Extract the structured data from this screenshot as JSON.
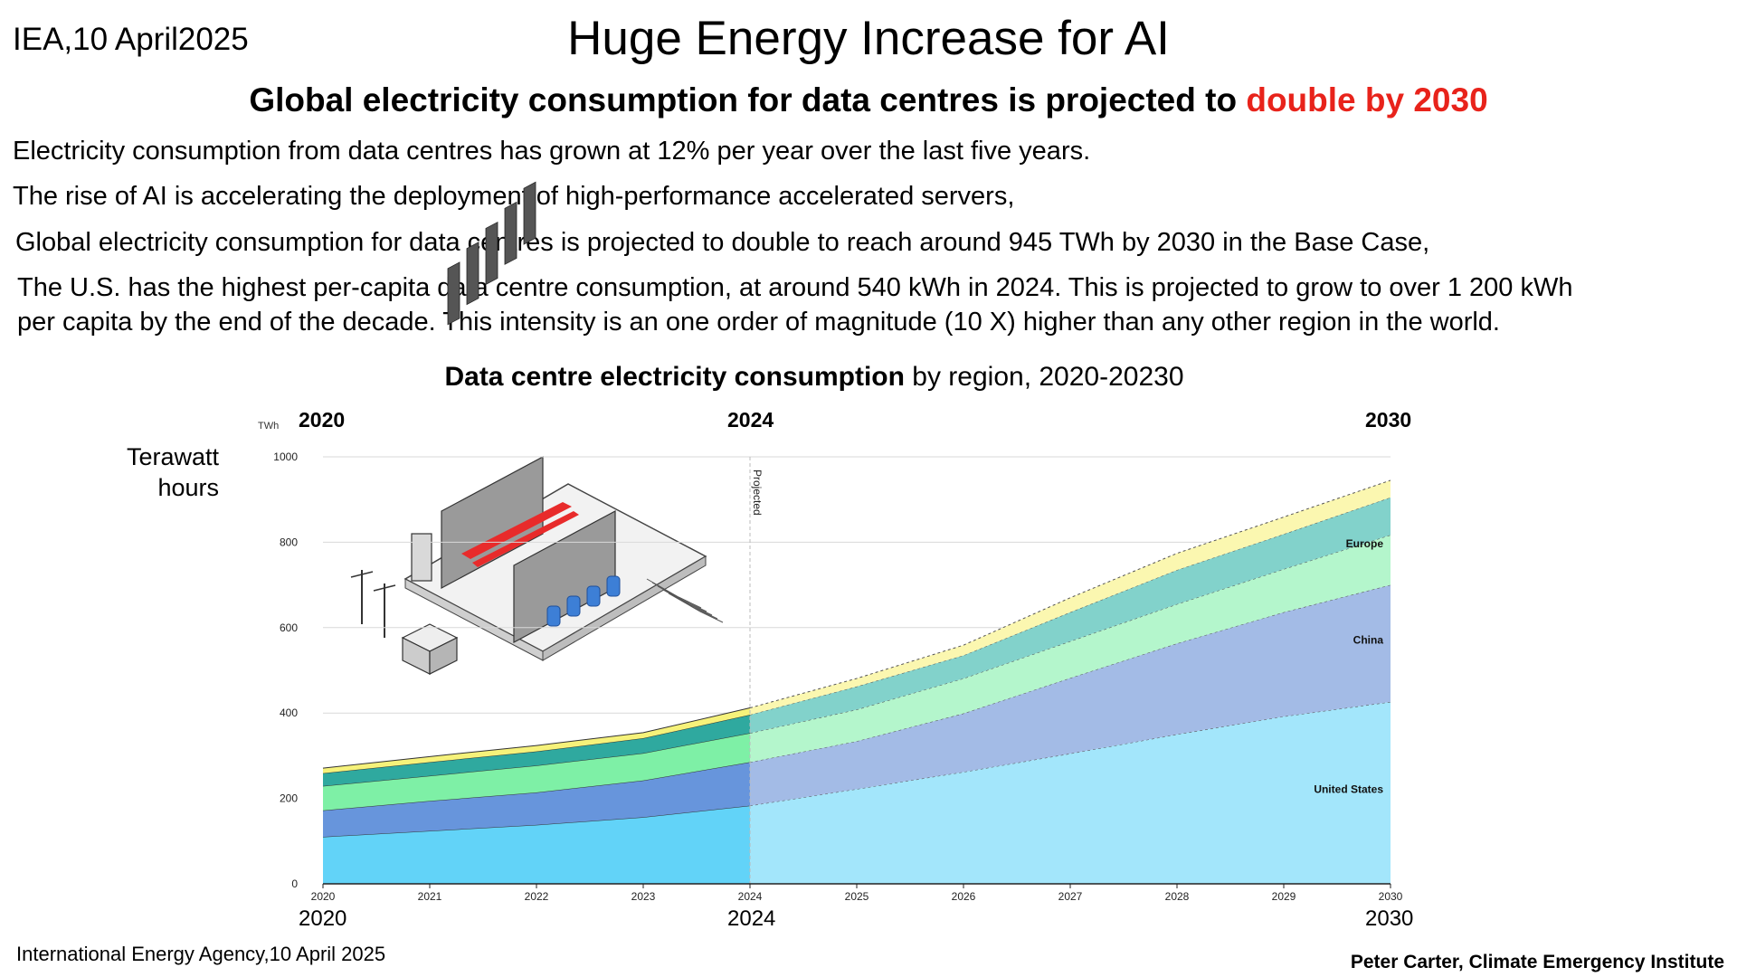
{
  "header": {
    "source": "IEA,10 April2025",
    "title": "Huge Energy Increase for AI",
    "subtitle_main": "Global electricity consumption for data centres is projected to ",
    "subtitle_highlight": "double by 2030",
    "highlight_color": "#e8231b"
  },
  "paragraphs": [
    "Electricity consumption from data centres has grown at 12% per year over the last five years.",
    "The rise of AI is accelerating the deployment of high-performance accelerated servers,",
    "Global electricity consumption for data centres is projected to double to reach around 945 TWh by 2030 in the Base Case,",
    "The U.S. has the highest per-capita data centre consumption, at around 540 kWh in 2024. This is projected to grow to over 1 200 kWh",
    "per capita by the end of the decade. This intensity is an one order of magnitude (10 X) higher than any other region in the world."
  ],
  "chart_title": {
    "bold": "Data centre electricity consumption",
    "rest": " by region, 2020-20230"
  },
  "axis_label": "Terawatt hours",
  "year_labels": {
    "top": [
      "2020",
      "2024",
      "2030"
    ],
    "bottom": [
      "2020",
      "2024",
      "2030"
    ]
  },
  "footer": {
    "left": "International Energy Agency,10 April 2025",
    "right": "Peter Carter, Climate Emergency Institute"
  },
  "chart_data": {
    "type": "area",
    "stacked": true,
    "unit": "TWh",
    "x": [
      2020,
      2021,
      2022,
      2023,
      2024,
      2025,
      2026,
      2027,
      2028,
      2029,
      2030
    ],
    "ylim": [
      0,
      1000
    ],
    "yticks": [
      0,
      200,
      400,
      600,
      800,
      1000
    ],
    "projected_from": 2024,
    "projection_label": "Projected",
    "series": [
      {
        "name": "United States",
        "values": [
          110,
          124,
          138,
          156,
          183,
          222,
          262,
          305,
          350,
          392,
          426
        ],
        "color": "#62d3f8",
        "projected_color": "#a3e6fb"
      },
      {
        "name": "China",
        "values": [
          62,
          70,
          76,
          86,
          102,
          112,
          137,
          177,
          213,
          244,
          274
        ],
        "color": "#6795dc",
        "projected_color": "#a3bbe6"
      },
      {
        "name": "",
        "values": [
          57,
          59,
          63,
          64,
          68,
          74,
          82,
          86,
          92,
          101,
          117
        ],
        "color": "#7ef0a6",
        "projected_color": "#b4f6cc"
      },
      {
        "name": "",
        "values": [
          30,
          32,
          33,
          35,
          43,
          54,
          54,
          68,
          80,
          82,
          88
        ],
        "color": "#2fa99f",
        "projected_color": "#82d2cb"
      },
      {
        "name": "",
        "values": [
          12,
          13,
          14,
          13,
          16,
          19,
          24,
          34,
          39,
          40,
          40
        ],
        "color": "#f6f27a",
        "projected_color": "#fbf7b0"
      }
    ],
    "series_labels": [
      {
        "text": "United States"
      },
      {
        "text": "China"
      },
      {
        "text": "Europe"
      }
    ]
  }
}
